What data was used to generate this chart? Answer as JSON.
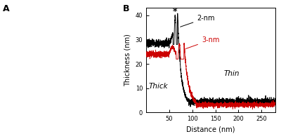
{
  "title": "B",
  "xlabel": "Distance (nm)",
  "ylabel": "Thickness (nm)",
  "xlim": [
    0,
    280
  ],
  "ylim": [
    0,
    43
  ],
  "yticks": [
    0,
    10,
    20,
    30,
    40
  ],
  "xticks": [
    50,
    100,
    150,
    200,
    250
  ],
  "label_2nm": "2-nm",
  "label_3nm": "3-nm",
  "label_thick": "Thick",
  "label_thin": "Thin",
  "color_2nm": "#000000",
  "color_3nm": "#cc0000",
  "background": "#ffffff",
  "figsize": [
    2.05,
    1.91
  ],
  "full_figsize": [
    4.0,
    1.91
  ]
}
